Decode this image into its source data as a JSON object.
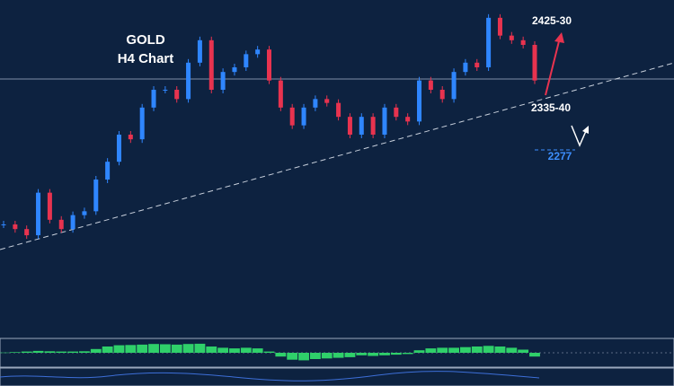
{
  "chart_data": {
    "type": "candlestick",
    "title": "GOLD",
    "subtitle": "H4 Chart",
    "annotations": [
      "2425-30",
      "2335-40",
      "2277"
    ],
    "values": [
      2180,
      2174,
      2166,
      2221,
      2186,
      2174,
      2192,
      2197,
      2238,
      2261,
      2296,
      2290,
      2331,
      2354,
      2354,
      2342,
      2389,
      2418,
      2354,
      2377,
      2383,
      2400,
      2406,
      2366,
      2331,
      2308,
      2331,
      2342,
      2337,
      2319,
      2296,
      2319,
      2296,
      2331,
      2319,
      2313,
      2366,
      2354,
      2342,
      2377,
      2389,
      2383,
      2447,
      2424,
      2418,
      2412,
      2366
    ],
    "ylim": [
      2035,
      2470
    ],
    "up_color": "#2f86ff",
    "down_color": "#e8334f",
    "oscillator": [
      0.02,
      0.05,
      0.1,
      0.15,
      0.12,
      0.1,
      0.1,
      0.12,
      0.3,
      0.5,
      0.6,
      0.62,
      0.65,
      0.7,
      0.68,
      0.65,
      0.7,
      0.72,
      0.5,
      0.4,
      0.35,
      0.4,
      0.35,
      0.1,
      -0.3,
      -0.55,
      -0.6,
      -0.5,
      -0.45,
      -0.4,
      -0.35,
      -0.2,
      -0.25,
      -0.2,
      -0.15,
      -0.1,
      0.2,
      0.35,
      0.4,
      0.4,
      0.45,
      0.5,
      0.55,
      0.5,
      0.4,
      0.25,
      -0.3
    ],
    "oscillator_lim": [
      -1,
      1
    ],
    "oscillator_color": "#2fd06a"
  }
}
